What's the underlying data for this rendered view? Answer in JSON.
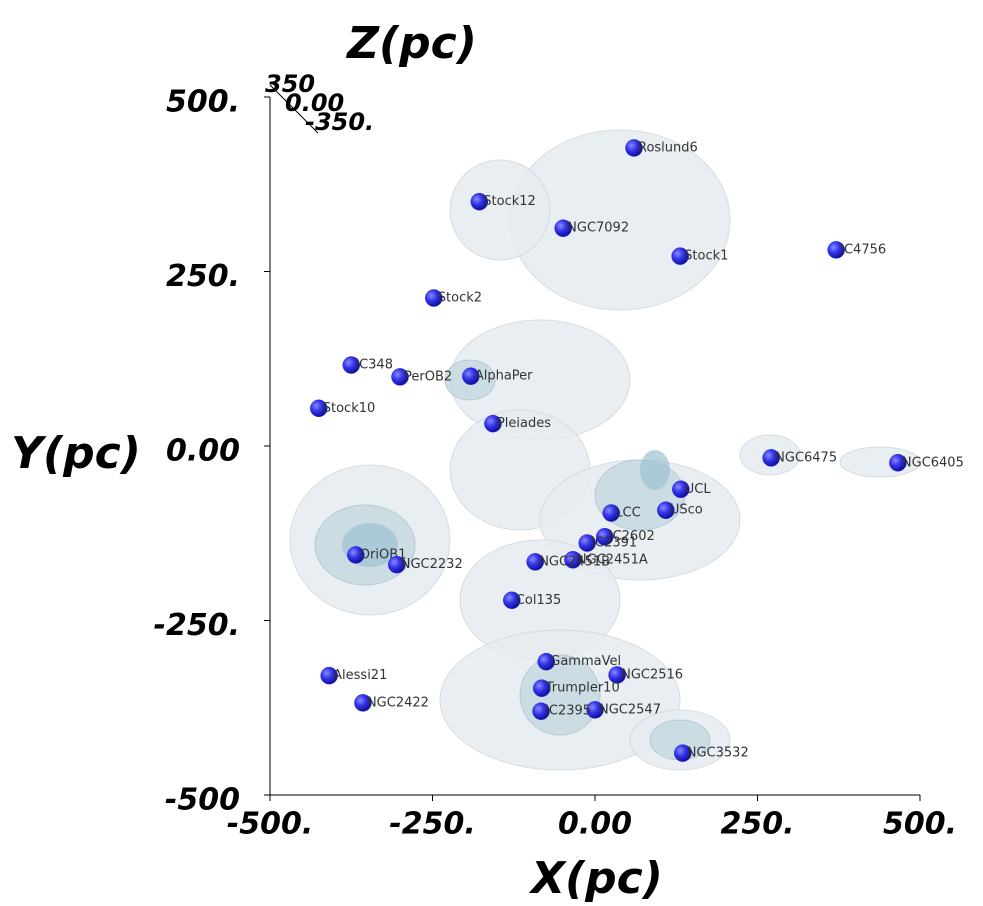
{
  "chart_data": {
    "type": "scatter",
    "x_label": "X(pc)",
    "y_label": "Y(pc)",
    "z_label": "Z(pc)",
    "xlim": [
      -500,
      500
    ],
    "ylim": [
      -500,
      500
    ],
    "xticks": [
      {
        "value": -500,
        "label": "-500."
      },
      {
        "value": -250,
        "label": "-250."
      },
      {
        "value": 0,
        "label": "0.00"
      },
      {
        "value": 250,
        "label": "250."
      },
      {
        "value": 500,
        "label": "500."
      }
    ],
    "yticks": [
      {
        "value": -500,
        "label": "-500"
      },
      {
        "value": -250,
        "label": "-250."
      },
      {
        "value": 0,
        "label": "0.00"
      },
      {
        "value": 250,
        "label": "250."
      },
      {
        "value": 500,
        "label": "500."
      }
    ],
    "zticks": [
      {
        "value": 350,
        "label": "350"
      },
      {
        "value": 0,
        "label": "0.00"
      },
      {
        "value": -350,
        "label": "-350."
      }
    ],
    "color": "#2b2be6",
    "labels": [
      "Roslund6",
      "Stock12",
      "NGC7092",
      "Stock1",
      "IC4756",
      "Stock2",
      "IC348",
      "PerOB2",
      "AlphaPer",
      "Stock10",
      "Pleiades",
      "NGC6475",
      "NGC6405",
      "UCL",
      "USco",
      "LCC",
      "IC2602",
      "IC2391",
      "NGC2451A",
      "NGC2451B",
      "OriOB1",
      "NGC2232",
      "Col135",
      "GammaVel",
      "NGC2516",
      "Trumpler10",
      "NGC2547",
      "IC2395",
      "Alessi21",
      "NGC2422",
      "NGC3532"
    ],
    "x": [
      60,
      -178,
      -49,
      131,
      371,
      -248,
      -375,
      -300,
      -191,
      -425,
      -157,
      271,
      466,
      132,
      109,
      25,
      15,
      -12,
      -34,
      -92,
      -368,
      -305,
      -128,
      -75,
      34,
      -82,
      0,
      -83,
      -409,
      -357,
      135
    ],
    "values": [
      427,
      350,
      312,
      272,
      281,
      212,
      116,
      99,
      100,
      54,
      32,
      -17,
      -24,
      -62,
      -92,
      -96,
      -130,
      -139,
      -163,
      -166,
      -156,
      -170,
      -221,
      -309,
      -328,
      -347,
      -378,
      -380,
      -329,
      -368,
      -440
    ]
  }
}
